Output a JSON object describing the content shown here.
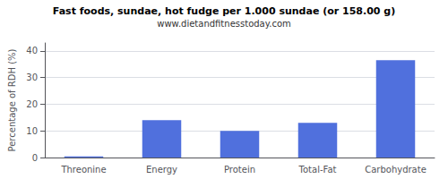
{
  "chart_data": {
    "type": "bar",
    "title": "Fast foods, sundae, hot fudge per 1.000 sundae (or 158.00 g)",
    "subtitle": "www.dietandfitnesstoday.com",
    "categories": [
      "Threonine",
      "Energy",
      "Protein",
      "Total-Fat",
      "Carbohydrate"
    ],
    "values": [
      0.4,
      14.0,
      10.0,
      13.0,
      36.5
    ],
    "ylabel": "Percentage of RDH (%)",
    "ylim": [
      0,
      43
    ],
    "yticks": [
      0,
      10,
      20,
      30,
      40
    ],
    "grid": true
  }
}
